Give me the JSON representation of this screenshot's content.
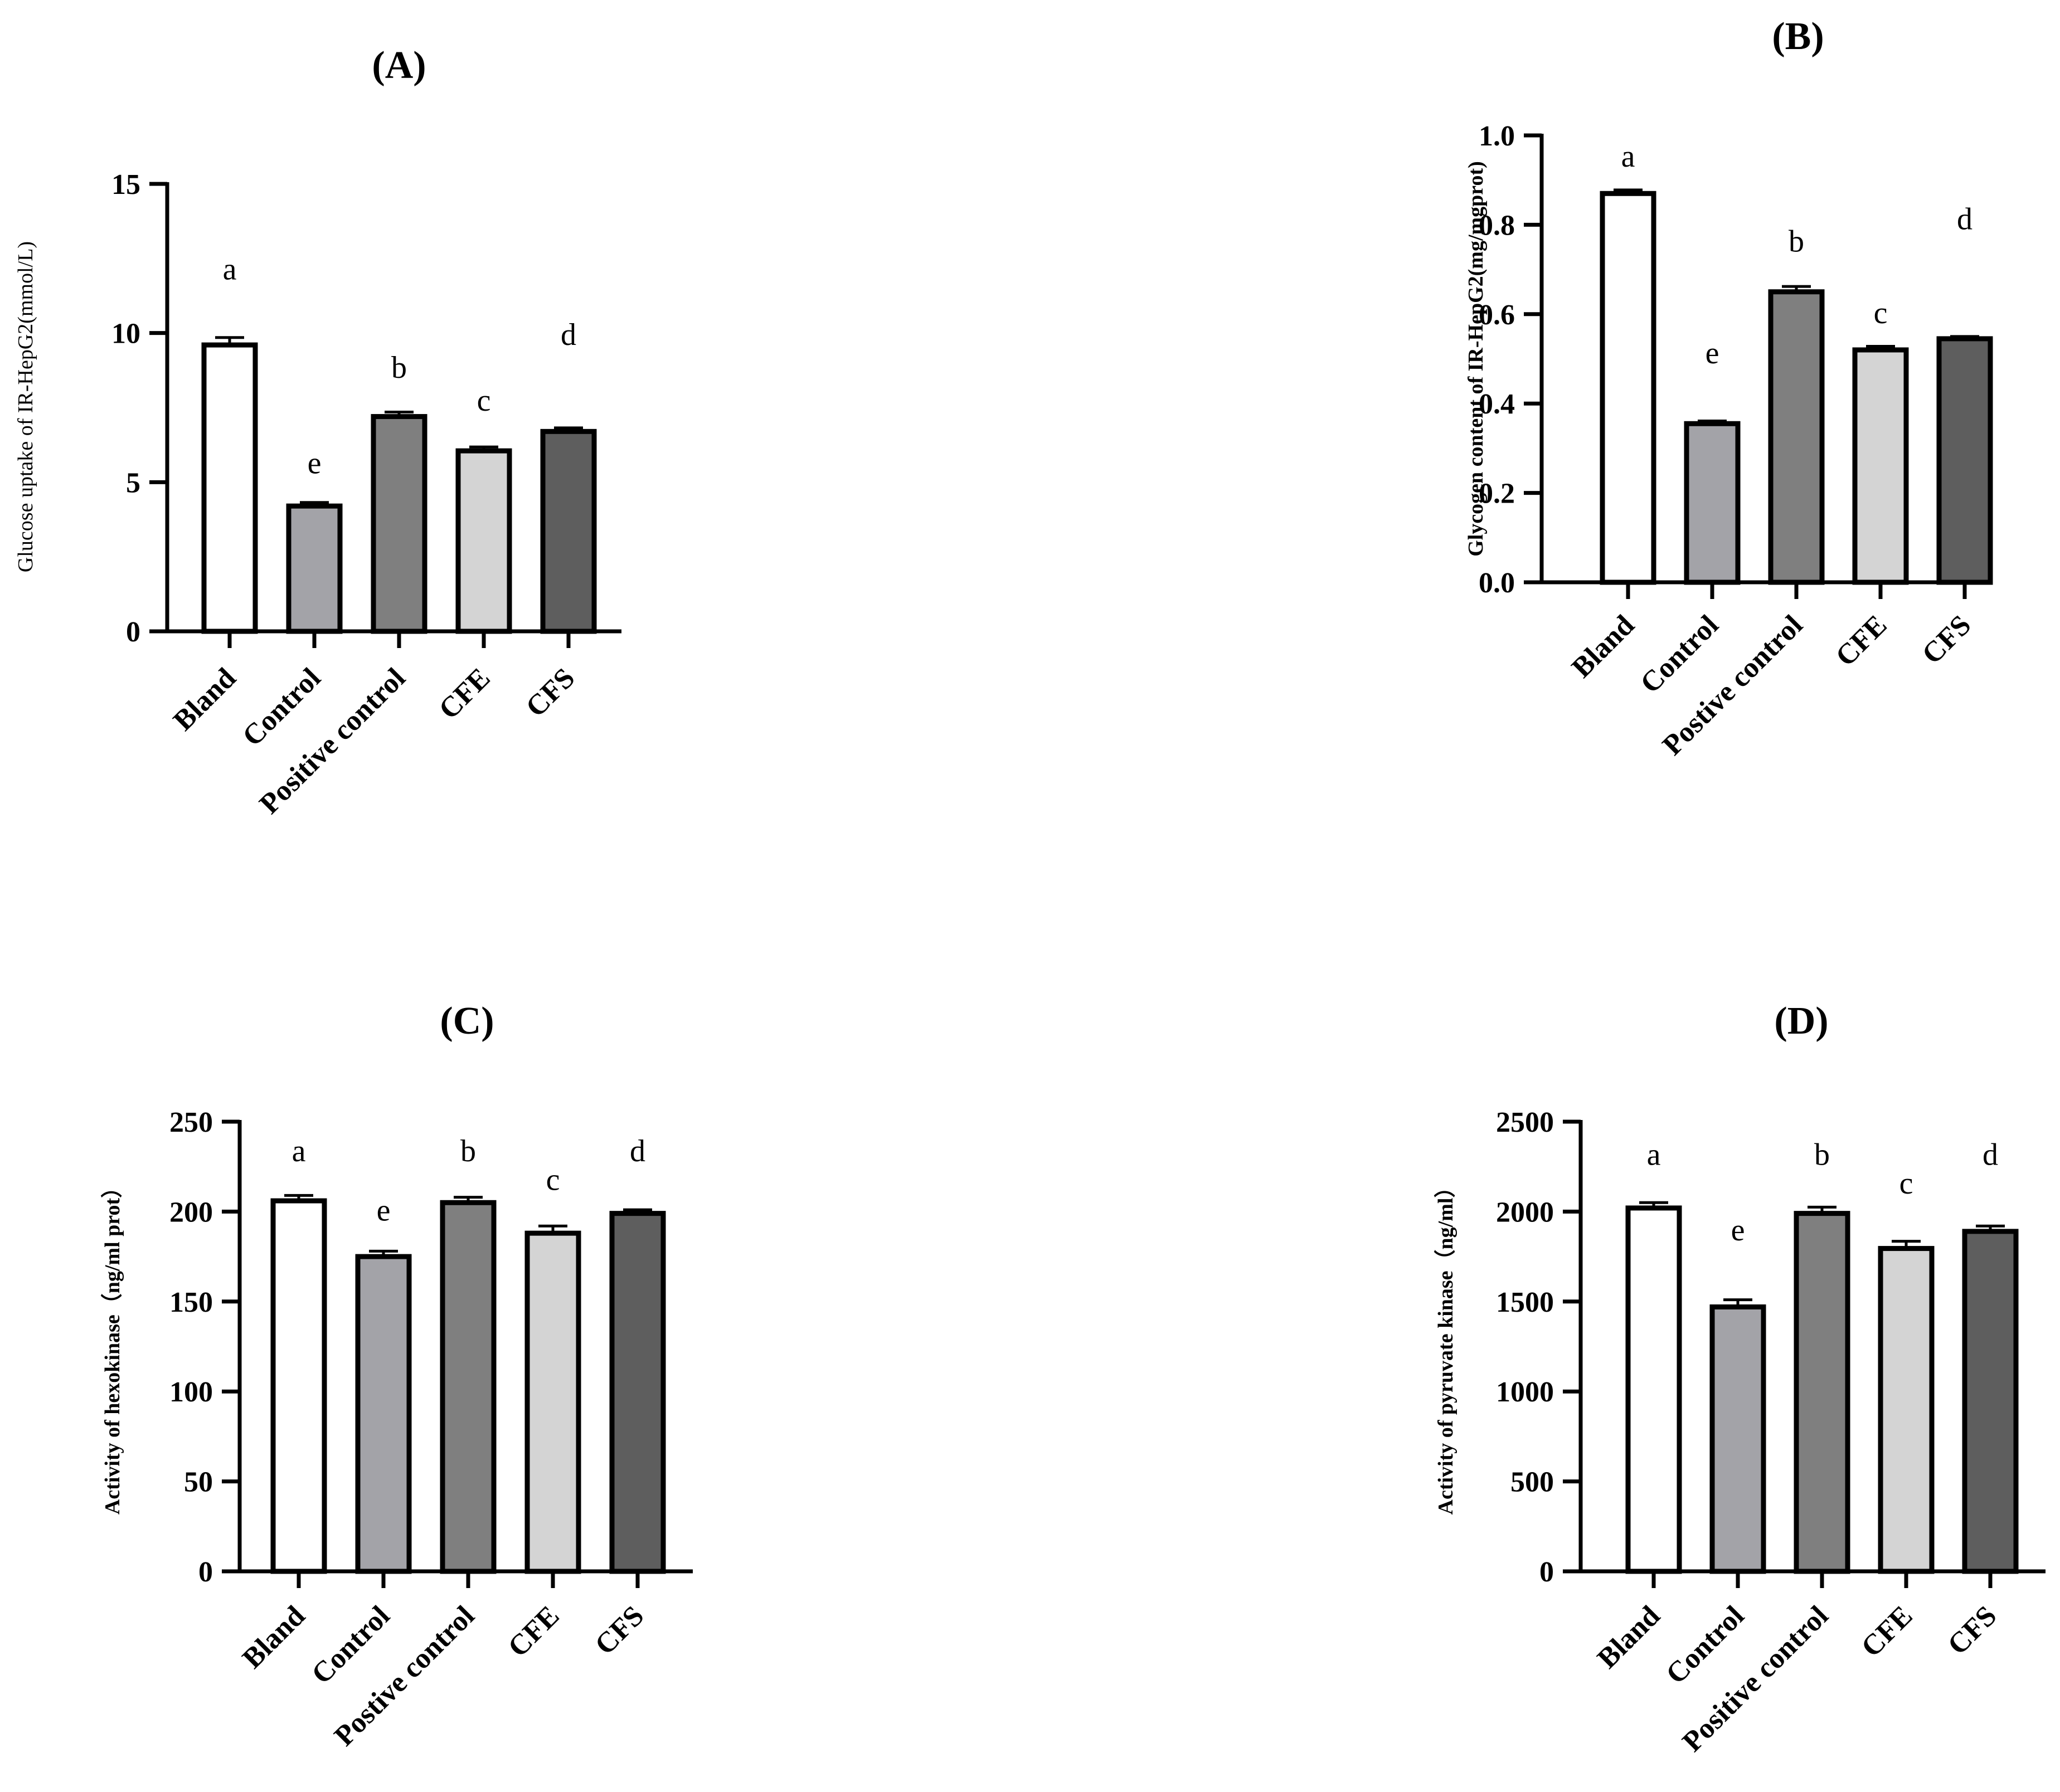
{
  "figure": {
    "panels_count": 4
  },
  "chart_data": [
    {
      "id": "A",
      "type": "bar",
      "title": "(A)",
      "ylabel": "Glucose uptake of IR-HepG2(mmol/L)",
      "ylabel_bold": false,
      "categories": [
        "Bland",
        "Control",
        "Positive control",
        "CFE",
        "CFS"
      ],
      "values": [
        9.6,
        4.2,
        7.2,
        6.05,
        6.7
      ],
      "errors": [
        0.25,
        0.12,
        0.15,
        0.13,
        0.12
      ],
      "letters": [
        "a",
        "e",
        "b",
        "c",
        "d"
      ],
      "letter_values": [
        11.8,
        5.3,
        8.5,
        7.4,
        9.6
      ],
      "ylim": [
        0,
        15
      ],
      "yticks": [
        0,
        5,
        10,
        15
      ],
      "ytick_labels": [
        "0",
        "5",
        "10",
        "15"
      ],
      "colors": [
        "#ffffff",
        "#a3a3a8",
        "#7f7f7f",
        "#d4d4d4",
        "#5e5e5e"
      ]
    },
    {
      "id": "B",
      "type": "bar",
      "title": "(B)",
      "ylabel": "Glycogen content of IR-HepG2(mg/mgprot)",
      "ylabel_bold": true,
      "categories": [
        "Bland",
        "Control",
        "Postive control",
        "CFE",
        "CFS"
      ],
      "values": [
        0.87,
        0.355,
        0.65,
        0.52,
        0.545
      ],
      "errors": [
        0.008,
        0.006,
        0.012,
        0.008,
        0.005
      ],
      "letters": [
        "a",
        "e",
        "b",
        "c",
        "d"
      ],
      "letter_values": [
        0.93,
        0.49,
        0.74,
        0.58,
        0.79
      ],
      "ylim": [
        0,
        1.0
      ],
      "yticks": [
        0,
        0.2,
        0.4,
        0.6,
        0.8,
        1.0
      ],
      "ytick_labels": [
        "0.0",
        "0.2",
        "0.4",
        "0.6",
        "0.8",
        "1.0"
      ],
      "colors": [
        "#ffffff",
        "#a3a3a8",
        "#7f7f7f",
        "#d4d4d4",
        "#5e5e5e"
      ]
    },
    {
      "id": "C",
      "type": "bar",
      "title": "(C)",
      "ylabel": "Activity of hexokinase（ng/ml prot）",
      "ylabel_bold": true,
      "categories": [
        "Bland",
        "Control",
        "Postive control",
        "CFE",
        "CFS"
      ],
      "values": [
        206,
        175,
        205,
        188,
        199
      ],
      "errors": [
        3,
        3,
        3,
        4,
        2
      ],
      "letters": [
        "a",
        "e",
        "b",
        "c",
        "d"
      ],
      "letter_values": [
        228,
        195,
        228,
        212,
        228
      ],
      "ylim": [
        0,
        250
      ],
      "yticks": [
        0,
        50,
        100,
        150,
        200,
        250
      ],
      "ytick_labels": [
        "0",
        "50",
        "100",
        "150",
        "200",
        "250"
      ],
      "colors": [
        "#ffffff",
        "#a3a3a8",
        "#7f7f7f",
        "#d4d4d4",
        "#5e5e5e"
      ]
    },
    {
      "id": "D",
      "type": "bar",
      "title": "(D)",
      "ylabel": "Activity of pyruvate kinase（ng/ml）",
      "ylabel_bold": true,
      "categories": [
        "Bland",
        "Control",
        "Positive control",
        "CFE",
        "CFS"
      ],
      "values": [
        2020,
        1470,
        1990,
        1795,
        1890
      ],
      "errors": [
        30,
        40,
        35,
        40,
        30
      ],
      "letters": [
        "a",
        "e",
        "b",
        "c",
        "d"
      ],
      "letter_values": [
        2260,
        1840,
        2260,
        2100,
        2260
      ],
      "ylim": [
        0,
        2500
      ],
      "yticks": [
        0,
        500,
        1000,
        1500,
        2000,
        2500
      ],
      "ytick_labels": [
        "0",
        "500",
        "1000",
        "1500",
        "2000",
        "2500"
      ],
      "colors": [
        "#ffffff",
        "#a3a3a8",
        "#7f7f7f",
        "#d4d4d4",
        "#5e5e5e"
      ]
    }
  ]
}
